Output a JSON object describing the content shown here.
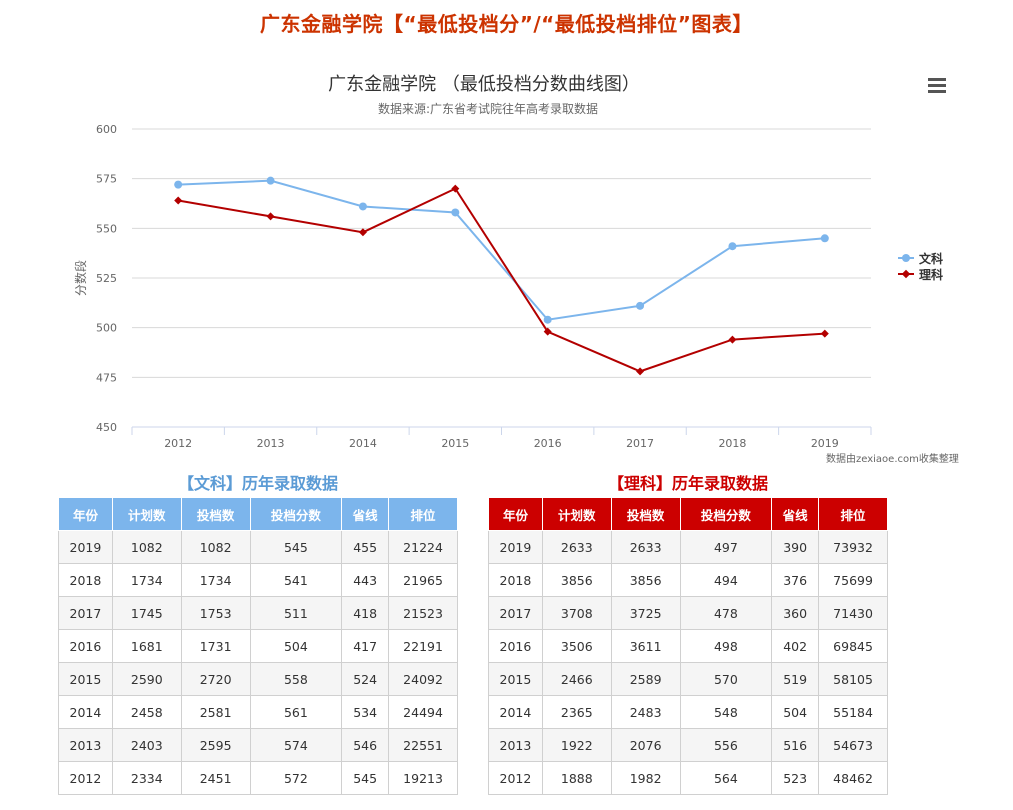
{
  "page_title": "广东金融学院【“最低投档分”/“最低投档排位”图表】",
  "credit": "数据由zexiaoe.com收集整理",
  "chart_data": {
    "type": "line",
    "title": "广东金融学院 （最低投档分数曲线图）",
    "subtitle": "数据来源:广东省考试院往年高考录取数据",
    "ylabel": "分数段",
    "xlabel": "",
    "categories": [
      "2012",
      "2013",
      "2014",
      "2015",
      "2016",
      "2017",
      "2018",
      "2019"
    ],
    "ylim": [
      450,
      600
    ],
    "yticks": [
      450,
      475,
      500,
      525,
      550,
      575,
      600
    ],
    "grid": true,
    "legend_position": "right",
    "series": [
      {
        "name": "文科",
        "color": "#7cb5ec",
        "marker": "circle",
        "values": [
          572,
          574,
          561,
          558,
          504,
          511,
          541,
          545
        ]
      },
      {
        "name": "理科",
        "color": "#b30000",
        "marker": "diamond",
        "values": [
          564,
          556,
          548,
          570,
          498,
          478,
          494,
          497
        ]
      }
    ]
  },
  "tables": {
    "headers": [
      "年份",
      "计划数",
      "投档数",
      "投档分数",
      "省线",
      "排位"
    ],
    "wenke": {
      "title": "【文科】历年录取数据",
      "rows": [
        [
          "2019",
          "1082",
          "1082",
          "545",
          "455",
          "21224"
        ],
        [
          "2018",
          "1734",
          "1734",
          "541",
          "443",
          "21965"
        ],
        [
          "2017",
          "1745",
          "1753",
          "511",
          "418",
          "21523"
        ],
        [
          "2016",
          "1681",
          "1731",
          "504",
          "417",
          "22191"
        ],
        [
          "2015",
          "2590",
          "2720",
          "558",
          "524",
          "24092"
        ],
        [
          "2014",
          "2458",
          "2581",
          "561",
          "534",
          "24494"
        ],
        [
          "2013",
          "2403",
          "2595",
          "574",
          "546",
          "22551"
        ],
        [
          "2012",
          "2334",
          "2451",
          "572",
          "545",
          "19213"
        ]
      ]
    },
    "like": {
      "title": "【理科】历年录取数据",
      "rows": [
        [
          "2019",
          "2633",
          "2633",
          "497",
          "390",
          "73932"
        ],
        [
          "2018",
          "3856",
          "3856",
          "494",
          "376",
          "75699"
        ],
        [
          "2017",
          "3708",
          "3725",
          "478",
          "360",
          "71430"
        ],
        [
          "2016",
          "3506",
          "3611",
          "498",
          "402",
          "69845"
        ],
        [
          "2015",
          "2466",
          "2589",
          "570",
          "519",
          "58105"
        ],
        [
          "2014",
          "2365",
          "2483",
          "548",
          "504",
          "55184"
        ],
        [
          "2013",
          "1922",
          "2076",
          "556",
          "516",
          "54673"
        ],
        [
          "2012",
          "1888",
          "1982",
          "564",
          "523",
          "48462"
        ]
      ]
    }
  }
}
